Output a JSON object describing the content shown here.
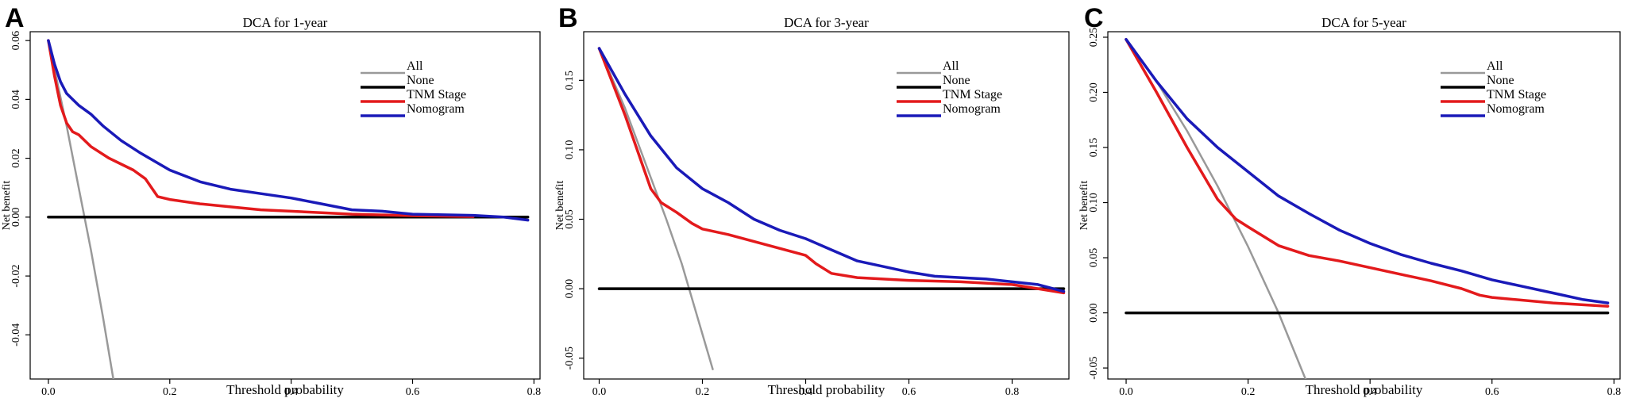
{
  "panels": [
    {
      "letter": "A",
      "chart_data": {
        "type": "line",
        "title": "DCA for 1-year",
        "xlabel": "Threshold probability",
        "ylabel": "Net benefit",
        "xlim": [
          -0.03,
          0.81
        ],
        "ylim": [
          -0.055,
          0.063
        ],
        "x_ticks": [
          0.0,
          0.2,
          0.4,
          0.6,
          0.8
        ],
        "x_tick_labels": [
          "0.0",
          "0.2",
          "0.4",
          "0.6",
          "0.8"
        ],
        "y_ticks": [
          -0.04,
          -0.02,
          0.0,
          0.02,
          0.04,
          0.06
        ],
        "y_tick_labels": [
          "-0.04",
          "-0.02",
          "0.00",
          "0.02",
          "0.04",
          "0.06"
        ],
        "grid": false,
        "legend_position": "top-right",
        "series": [
          {
            "name": "All",
            "color": "#999999",
            "x": [
              0.0,
              0.03,
              0.05,
              0.07,
              0.09,
              0.107
            ],
            "y": [
              0.06,
              0.031,
              0.01,
              -0.011,
              -0.034,
              -0.055
            ]
          },
          {
            "name": "None",
            "color": "#000000",
            "x": [
              0.0,
              0.79
            ],
            "y": [
              0.0,
              0.0
            ]
          },
          {
            "name": "TNM Stage",
            "color": "#e31a1c",
            "x": [
              0.0,
              0.01,
              0.02,
              0.03,
              0.04,
              0.05,
              0.07,
              0.1,
              0.12,
              0.14,
              0.16,
              0.18,
              0.2,
              0.25,
              0.3,
              0.35,
              0.4,
              0.45,
              0.5,
              0.6,
              0.7
            ],
            "y": [
              0.06,
              0.048,
              0.038,
              0.032,
              0.029,
              0.028,
              0.024,
              0.02,
              0.018,
              0.016,
              0.013,
              0.007,
              0.006,
              0.0045,
              0.0035,
              0.0025,
              0.002,
              0.0015,
              0.001,
              0.0005,
              0.0002
            ]
          },
          {
            "name": "Nomogram",
            "color": "#1a1ab8",
            "x": [
              0.0,
              0.01,
              0.02,
              0.03,
              0.05,
              0.07,
              0.09,
              0.12,
              0.15,
              0.2,
              0.25,
              0.3,
              0.35,
              0.4,
              0.45,
              0.5,
              0.55,
              0.6,
              0.65,
              0.7,
              0.75,
              0.79
            ],
            "y": [
              0.06,
              0.052,
              0.046,
              0.042,
              0.038,
              0.035,
              0.031,
              0.026,
              0.022,
              0.016,
              0.012,
              0.0095,
              0.008,
              0.0065,
              0.0045,
              0.0025,
              0.002,
              0.001,
              0.0008,
              0.0006,
              0.0,
              -0.001
            ]
          }
        ]
      }
    },
    {
      "letter": "B",
      "chart_data": {
        "type": "line",
        "title": "DCA for 3-year",
        "xlabel": "Threshold probability",
        "ylabel": "Net benefit",
        "xlim": [
          -0.03,
          0.91
        ],
        "ylim": [
          -0.065,
          0.185
        ],
        "x_ticks": [
          0.0,
          0.2,
          0.4,
          0.6,
          0.8
        ],
        "x_tick_labels": [
          "0.0",
          "0.2",
          "0.4",
          "0.6",
          "0.8"
        ],
        "y_ticks": [
          -0.05,
          0.0,
          0.05,
          0.1,
          0.15
        ],
        "y_tick_labels": [
          "-0.05",
          "0.00",
          "0.05",
          "0.10",
          "0.15"
        ],
        "grid": false,
        "legend_position": "top-right",
        "series": [
          {
            "name": "All",
            "color": "#999999",
            "x": [
              0.0,
              0.05,
              0.1,
              0.13,
              0.16,
              0.19,
              0.22
            ],
            "y": [
              0.173,
              0.13,
              0.08,
              0.05,
              0.018,
              -0.02,
              -0.058
            ]
          },
          {
            "name": "None",
            "color": "#000000",
            "x": [
              0.0,
              0.9
            ],
            "y": [
              0.0,
              0.0
            ]
          },
          {
            "name": "TNM Stage",
            "color": "#e31a1c",
            "x": [
              0.0,
              0.05,
              0.1,
              0.12,
              0.15,
              0.18,
              0.2,
              0.25,
              0.3,
              0.35,
              0.4,
              0.42,
              0.45,
              0.5,
              0.6,
              0.7,
              0.8,
              0.9
            ],
            "y": [
              0.173,
              0.125,
              0.072,
              0.062,
              0.055,
              0.047,
              0.043,
              0.039,
              0.034,
              0.029,
              0.024,
              0.018,
              0.011,
              0.008,
              0.006,
              0.005,
              0.003,
              -0.003
            ]
          },
          {
            "name": "Nomogram",
            "color": "#1a1ab8",
            "x": [
              0.0,
              0.05,
              0.1,
              0.15,
              0.2,
              0.25,
              0.3,
              0.35,
              0.4,
              0.45,
              0.5,
              0.55,
              0.6,
              0.65,
              0.7,
              0.75,
              0.8,
              0.85,
              0.9
            ],
            "y": [
              0.173,
              0.14,
              0.11,
              0.087,
              0.072,
              0.062,
              0.05,
              0.042,
              0.036,
              0.028,
              0.02,
              0.016,
              0.012,
              0.009,
              0.008,
              0.007,
              0.005,
              0.003,
              -0.002
            ]
          }
        ]
      }
    },
    {
      "letter": "C",
      "chart_data": {
        "type": "line",
        "title": "DCA for 5-year",
        "xlabel": "Threshold probability",
        "ylabel": "Net benefit",
        "xlim": [
          -0.03,
          0.81
        ],
        "ylim": [
          -0.06,
          0.255
        ],
        "x_ticks": [
          0.0,
          0.2,
          0.4,
          0.6,
          0.8
        ],
        "x_tick_labels": [
          "0.0",
          "0.2",
          "0.4",
          "0.6",
          "0.8"
        ],
        "y_ticks": [
          -0.05,
          0.0,
          0.05,
          0.1,
          0.15,
          0.2,
          0.25
        ],
        "y_tick_labels": [
          "-0.05",
          "0.00",
          "0.05",
          "0.10",
          "0.15",
          "0.20",
          "0.25"
        ],
        "grid": false,
        "legend_position": "top-right",
        "series": [
          {
            "name": "All",
            "color": "#999999",
            "x": [
              0.0,
              0.05,
              0.1,
              0.15,
              0.2,
              0.25,
              0.3
            ],
            "y": [
              0.248,
              0.21,
              0.165,
              0.115,
              0.06,
              0.0,
              -0.068
            ]
          },
          {
            "name": "None",
            "color": "#000000",
            "x": [
              0.0,
              0.79
            ],
            "y": [
              0.0,
              0.0
            ]
          },
          {
            "name": "TNM Stage",
            "color": "#e31a1c",
            "x": [
              0.0,
              0.05,
              0.1,
              0.15,
              0.18,
              0.2,
              0.25,
              0.3,
              0.35,
              0.4,
              0.45,
              0.5,
              0.55,
              0.58,
              0.6,
              0.7,
              0.79
            ],
            "y": [
              0.248,
              0.2,
              0.15,
              0.103,
              0.085,
              0.078,
              0.061,
              0.052,
              0.047,
              0.041,
              0.035,
              0.029,
              0.022,
              0.016,
              0.014,
              0.009,
              0.006
            ]
          },
          {
            "name": "Nomogram",
            "color": "#1a1ab8",
            "x": [
              0.0,
              0.05,
              0.1,
              0.15,
              0.2,
              0.25,
              0.3,
              0.35,
              0.4,
              0.45,
              0.5,
              0.55,
              0.6,
              0.65,
              0.7,
              0.75,
              0.79
            ],
            "y": [
              0.248,
              0.21,
              0.176,
              0.15,
              0.128,
              0.106,
              0.09,
              0.075,
              0.063,
              0.053,
              0.045,
              0.038,
              0.03,
              0.024,
              0.018,
              0.012,
              0.009
            ]
          }
        ]
      }
    }
  ]
}
